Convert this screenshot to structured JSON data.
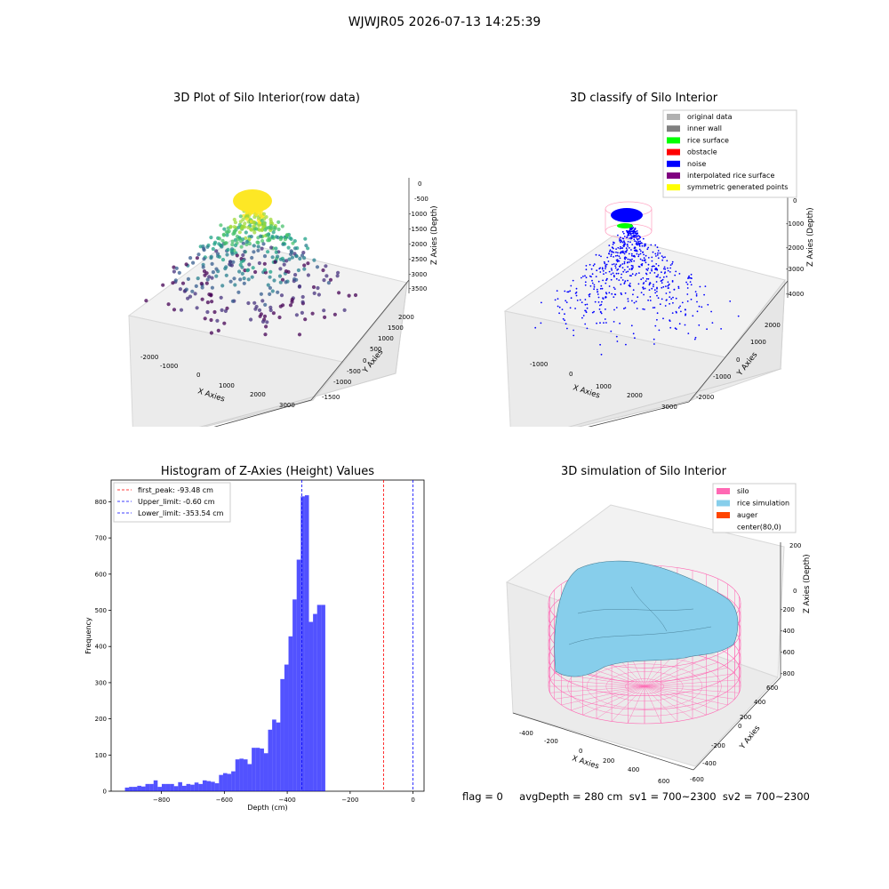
{
  "suptitle": "WJWJR05 2026-07-13 14:25:39",
  "panels": {
    "raw": {
      "title": "3D Plot of Silo Interior(row data)",
      "xlabel": "X Axies",
      "ylabel": "Y Axies",
      "zlabel": "Z Axies (Depth)",
      "xticks": [
        "-2000",
        "-1000",
        "0",
        "1000",
        "2000",
        "3000"
      ],
      "yticks": [
        "-1500",
        "-1000",
        "-500",
        "0",
        "500",
        "1000",
        "1500",
        "2000"
      ],
      "zticks": [
        "0",
        "-500",
        "-1000",
        "-1500",
        "-2000",
        "-2500",
        "-3000",
        "-3500"
      ]
    },
    "classify": {
      "title": "3D classify of Silo Interior",
      "xlabel": "X Axies",
      "ylabel": "Y Axies",
      "zlabel": "Z Axies (Depth)",
      "xticks": [
        "-1000",
        "0",
        "1000",
        "2000",
        "3000"
      ],
      "yticks": [
        "-2000",
        "-1000",
        "0",
        "1000",
        "2000"
      ],
      "zticks": [
        "0",
        "-1000",
        "-2000",
        "-3000",
        "-4000"
      ],
      "legend": [
        {
          "label": "original data",
          "color": "#b0b0b0"
        },
        {
          "label": "inner wall",
          "color": "#808080"
        },
        {
          "label": "rice surface",
          "color": "#00ff00"
        },
        {
          "label": "obstacle",
          "color": "#ff0000"
        },
        {
          "label": "noise",
          "color": "#0000ff"
        },
        {
          "label": "interpolated rice surface",
          "color": "#800080"
        },
        {
          "label": "symmetric generated points",
          "color": "#ffff00"
        }
      ]
    },
    "histogram": {
      "title": "Histogram of Z-Axies (Height) Values",
      "xlabel": "Depth (cm)",
      "ylabel": "Frequency",
      "legend": [
        {
          "label": "first_peak: -93.48 cm",
          "color": "#ff0000"
        },
        {
          "label": "Upper_limit: -0.60 cm",
          "color": "#0000ff"
        },
        {
          "label": "Lower_limit: -353.54 cm",
          "color": "#0000ff"
        }
      ]
    },
    "simulation": {
      "title": "3D simulation of Silo Interior",
      "xlabel": "X Axies",
      "ylabel": "Y Axies",
      "zlabel": "Z Axies (Depth)",
      "xticks": [
        "-400",
        "-200",
        "0",
        "200",
        "400",
        "600"
      ],
      "yticks": [
        "-600",
        "-400",
        "-200",
        "0",
        "200",
        "400",
        "600"
      ],
      "zticks": [
        "200",
        "0",
        "-200",
        "-400",
        "-600",
        "-800"
      ],
      "legend": [
        {
          "label": "silo",
          "color": "#ff69b4"
        },
        {
          "label": "rice simulation",
          "color": "#87ceeb"
        },
        {
          "label": "auger",
          "color": "#ff4500"
        },
        {
          "label": "center(80,0)",
          "color": ""
        }
      ]
    }
  },
  "footer": {
    "flag": "flag = 0",
    "stats": "avgDepth = 280 cm  sv1 = 700~2300  sv2 = 700~2300"
  },
  "chart_data": [
    {
      "type": "scatter",
      "title": "3D Plot of Silo Interior(row data)",
      "xlabel": "X Axies",
      "ylabel": "Y Axies",
      "zlabel": "Z Axies (Depth)",
      "xlim": [
        -2300,
        3300
      ],
      "ylim": [
        -1700,
        2100
      ],
      "zlim": [
        -3800,
        200
      ],
      "colormap": "viridis"
    },
    {
      "type": "scatter",
      "title": "3D classify of Silo Interior",
      "xlabel": "X Axies",
      "ylabel": "Y Axies",
      "zlabel": "Z Axies (Depth)",
      "xlim": [
        -1500,
        3300
      ],
      "ylim": [
        -2300,
        2300
      ],
      "zlim": [
        -4300,
        200
      ]
    },
    {
      "type": "bar",
      "title": "Histogram of Z-Axies (Height) Values",
      "xlabel": "Depth (cm)",
      "ylabel": "Frequency",
      "xlim": [
        -960,
        35
      ],
      "ylim": [
        0,
        860
      ],
      "xticks": [
        -800,
        -600,
        -400,
        -200,
        0
      ],
      "yticks": [
        0,
        100,
        200,
        300,
        400,
        500,
        600,
        700,
        800
      ],
      "bin_width": 13,
      "bin_start": -916,
      "values": [
        10,
        12,
        12,
        15,
        13,
        20,
        20,
        30,
        12,
        20,
        20,
        20,
        14,
        25,
        15,
        20,
        18,
        24,
        20,
        30,
        28,
        26,
        22,
        45,
        50,
        48,
        55,
        88,
        90,
        88,
        75,
        120,
        120,
        118,
        105,
        170,
        198,
        190,
        310,
        350,
        428,
        530,
        640,
        815,
        818,
        468,
        490,
        515,
        515
      ],
      "vlines": [
        {
          "x": -93.48,
          "label": "first_peak: -93.48 cm",
          "color": "#ff0000"
        },
        {
          "x": -0.6,
          "label": "Upper_limit: -0.60 cm",
          "color": "#0000ff"
        },
        {
          "x": -353.54,
          "label": "Lower_limit: -353.54 cm",
          "color": "#0000ff"
        }
      ]
    },
    {
      "type": "area",
      "title": "3D simulation of Silo Interior",
      "xlabel": "X Axies",
      "ylabel": "Y Axies",
      "zlabel": "Z Axies (Depth)",
      "xlim": [
        -520,
        720
      ],
      "ylim": [
        -640,
        640
      ],
      "zlim": [
        -850,
        300
      ]
    }
  ]
}
